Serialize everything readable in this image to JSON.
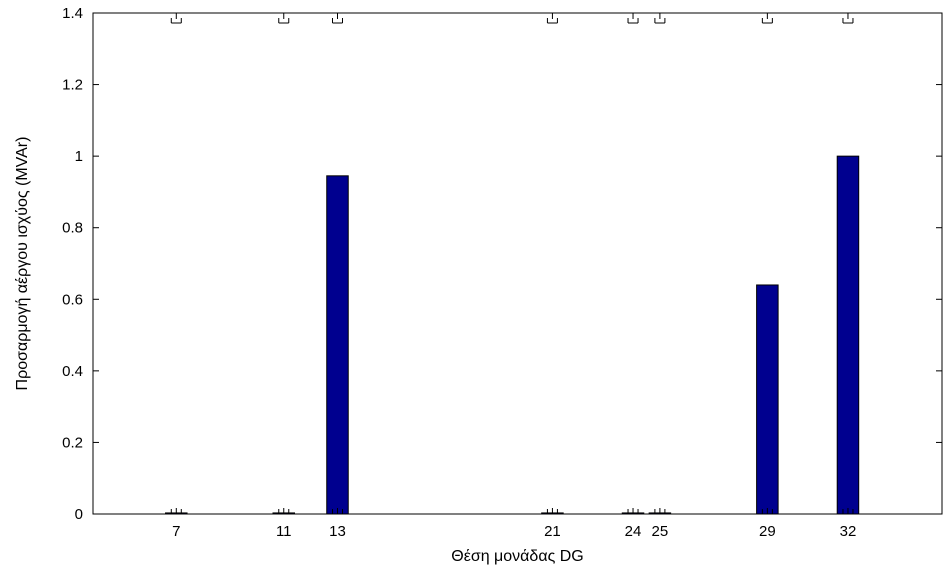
{
  "chart_data": {
    "type": "bar",
    "title": "",
    "xlabel": "Θέση μονάδας DG",
    "ylabel": "Προσαρμογή αέργου ισχύος (MVAr)",
    "x": [
      7,
      11,
      13,
      21,
      24,
      25,
      29,
      32
    ],
    "x_tick_labels": [
      "7",
      "11",
      "13",
      "21",
      "24",
      "25",
      "29",
      "32"
    ],
    "values": [
      0.003,
      0.003,
      0.945,
      0.003,
      0.003,
      0.003,
      0.64,
      1.0
    ],
    "xlim": [
      3.9,
      35.5
    ],
    "ylim": [
      0,
      1.4
    ],
    "y_ticks": [
      0,
      0.2,
      0.4,
      0.6,
      0.8,
      1,
      1.2,
      1.4
    ],
    "y_tick_labels": [
      "0",
      "0.2",
      "0.4",
      "0.6",
      "0.8",
      "1",
      "1.2",
      "1.4"
    ],
    "bar_color": "#00008f",
    "grid": false,
    "legend": "none",
    "error_caps": true
  }
}
